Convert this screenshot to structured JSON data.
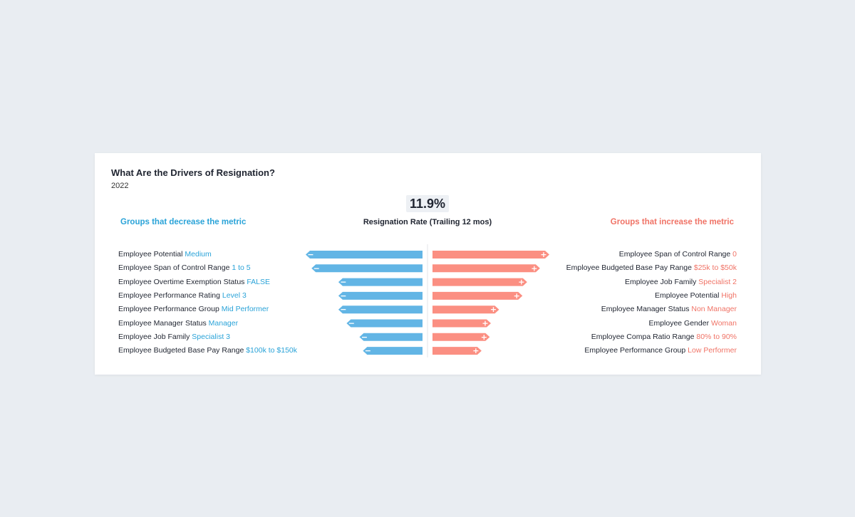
{
  "card": {
    "title": "What Are the Drivers of Resignation?",
    "subtitle": "2022"
  },
  "metric": {
    "value": "11.9%",
    "label": "Resignation Rate (Trailing 12 mos)"
  },
  "groups": {
    "decrease_label": "Groups that decrease the metric",
    "increase_label": "Groups that increase the metric"
  },
  "colors": {
    "decrease": "#62b5e5",
    "increase": "#fb8f82",
    "decrease_text": "#2aa3d8",
    "increase_text": "#f07366"
  },
  "chart_data": {
    "type": "bar",
    "orientation": "horizontal-diverging",
    "decrease": [
      {
        "field": "Employee Potential",
        "value_label": "Medium",
        "impact": 1.0
      },
      {
        "field": "Employee Span of Control Range",
        "value_label": "1 to 5",
        "impact": 0.95
      },
      {
        "field": "Employee Overtime Exemption Status",
        "value_label": "FALSE",
        "impact": 0.72
      },
      {
        "field": "Employee Performance Rating",
        "value_label": "Level 3",
        "impact": 0.72
      },
      {
        "field": "Employee Performance Group",
        "value_label": "Mid Performer",
        "impact": 0.72
      },
      {
        "field": "Employee Manager Status",
        "value_label": "Manager",
        "impact": 0.65
      },
      {
        "field": "Employee Job Family",
        "value_label": "Specialist 3",
        "impact": 0.54
      },
      {
        "field": "Employee Budgeted Base Pay Range",
        "value_label": "$100k to $150k",
        "impact": 0.51
      }
    ],
    "increase": [
      {
        "field": "Employee Span of Control Range",
        "value_label": "0",
        "impact": 1.0
      },
      {
        "field": "Employee Budgeted Base Pay Range",
        "value_label": "$25k to $50k",
        "impact": 0.92
      },
      {
        "field": "Employee Job Family",
        "value_label": "Specialist 2",
        "impact": 0.81
      },
      {
        "field": "Employee Potential",
        "value_label": "High",
        "impact": 0.77
      },
      {
        "field": "Employee Manager Status",
        "value_label": "Non Manager",
        "impact": 0.57
      },
      {
        "field": "Employee Gender",
        "value_label": "Woman",
        "impact": 0.5
      },
      {
        "field": "Employee Compa Ratio Range",
        "value_label": "80% to 90%",
        "impact": 0.49
      },
      {
        "field": "Employee Performance Group",
        "value_label": "Low Performer",
        "impact": 0.42
      }
    ]
  }
}
